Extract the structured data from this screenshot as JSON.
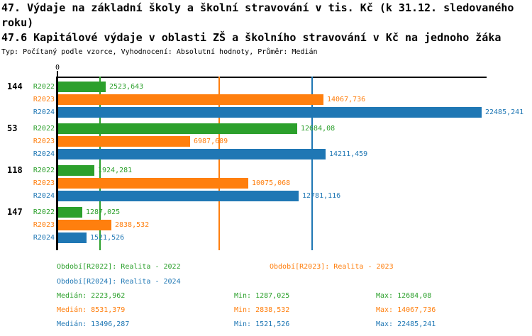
{
  "header": {
    "title_line1": "47. Výdaje na základní školy a školní stravování v tis. Kč (k 31.12. sledovaného",
    "title_line2": "roku)",
    "subtitle": "47.6 Kapitálové výdaje v oblasti ZŠ a školního stravování v Kč na jednoho žáka",
    "meta": "Typ: Počítaný podle vzorce, Vyhodnocení: Absolutní hodnoty, Průměr: Medián"
  },
  "chart_data": {
    "type": "bar",
    "orientation": "horizontal",
    "title": "47.6 Kapitálové výdaje v oblasti ZŠ a školního stravování v Kč na jednoho žáka",
    "x_axis": {
      "origin_tick_label": "0",
      "min": 0,
      "max_visible": 22750,
      "gridlines_at_series_medians": true
    },
    "decimal_separator": ",",
    "categories": [
      "144",
      "53",
      "118",
      "147"
    ],
    "series": [
      {
        "id": "R2022",
        "name": "Realita - 2022",
        "color": "#2ca02c",
        "median": 2223.962,
        "min": 1287.025,
        "max": 12684.08
      },
      {
        "id": "R2023",
        "name": "Realita - 2023",
        "color": "#ff7f0e",
        "median": 8531.379,
        "min": 2838.532,
        "max": 14067.736
      },
      {
        "id": "R2024",
        "name": "Realita - 2024",
        "color": "#1f77b4",
        "median": 13496.287,
        "min": 1521.526,
        "max": 22485.241
      }
    ],
    "groups": [
      {
        "category": "144",
        "values": [
          2523.643,
          14067.736,
          22485.241
        ],
        "value_labels": [
          "2523,643",
          "14067,736",
          "22485,241"
        ]
      },
      {
        "category": "53",
        "values": [
          12684.08,
          6987.689,
          14211.459
        ],
        "value_labels": [
          "12684,08",
          "6987,689",
          "14211,459"
        ]
      },
      {
        "category": "118",
        "values": [
          1924.281,
          10075.068,
          12781.116
        ],
        "value_labels": [
          "1924,281",
          "10075,068",
          "12781,116"
        ]
      },
      {
        "category": "147",
        "values": [
          1287.025,
          2838.532,
          1521.526
        ],
        "value_labels": [
          "1287,025",
          "2838,532",
          "1521,526"
        ]
      }
    ]
  },
  "legend": {
    "items": [
      {
        "text": "Období[R2022]: Realita - 2022",
        "color": "#2ca02c"
      },
      {
        "text": "Období[R2023]: Realita - 2023",
        "color": "#ff7f0e"
      },
      {
        "text": "Období[R2024]: Realita - 2024",
        "color": "#1f77b4"
      }
    ]
  },
  "stats": {
    "rows": [
      {
        "median": "Medián: 2223,962",
        "min": "Min: 1287,025",
        "max": "Max: 12684,08",
        "color": "#2ca02c"
      },
      {
        "median": "Medián: 8531,379",
        "min": "Min: 2838,532",
        "max": "Max: 14067,736",
        "color": "#ff7f0e"
      },
      {
        "median": "Medián: 13496,287",
        "min": "Min: 1521,526",
        "max": "Max: 22485,241",
        "color": "#1f77b4"
      }
    ]
  }
}
